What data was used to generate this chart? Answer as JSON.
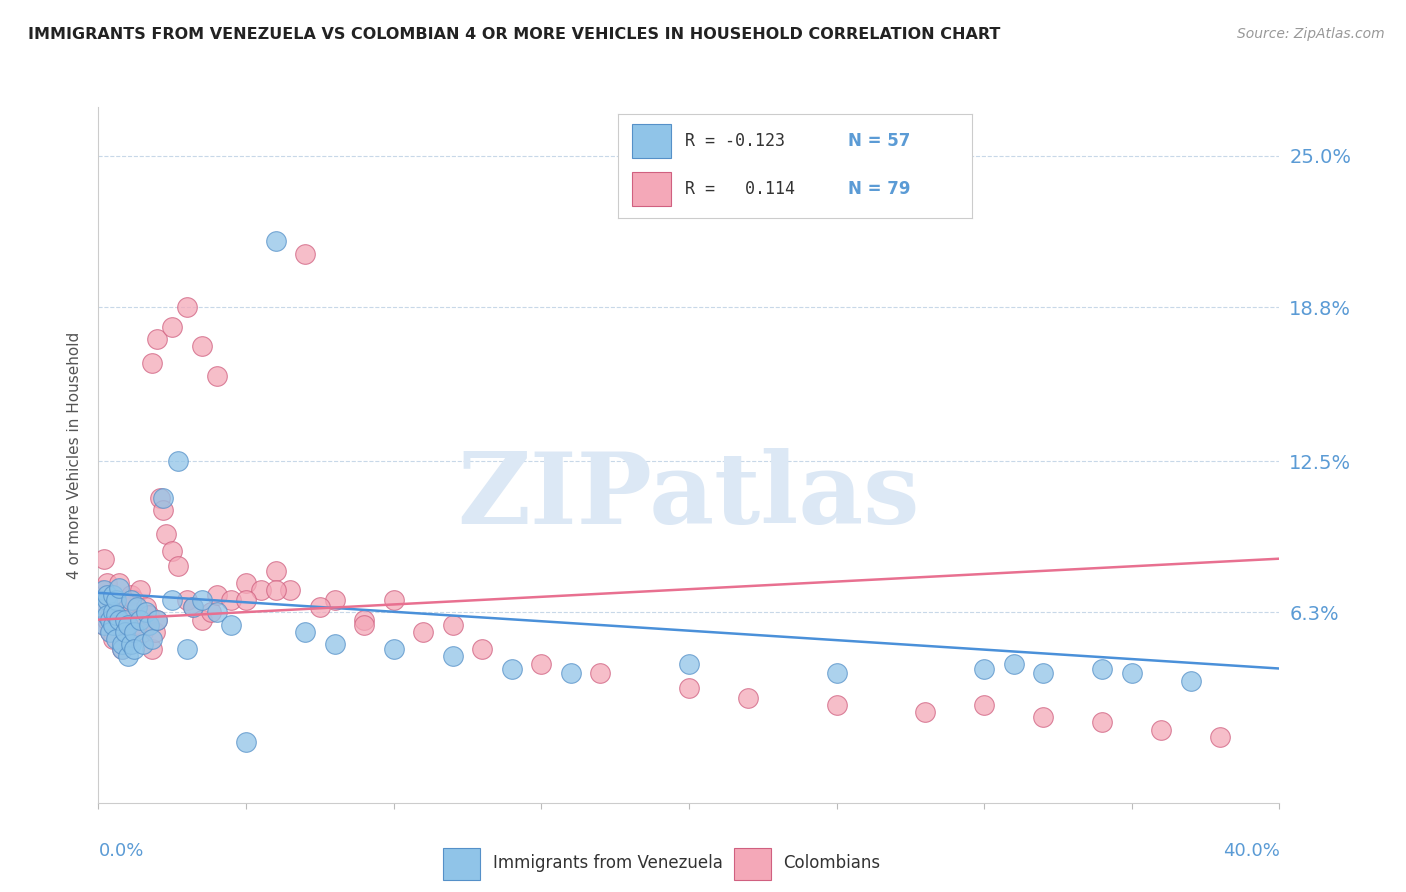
{
  "title": "IMMIGRANTS FROM VENEZUELA VS COLOMBIAN 4 OR MORE VEHICLES IN HOUSEHOLD CORRELATION CHART",
  "source": "Source: ZipAtlas.com",
  "ylabel": "4 or more Vehicles in Household",
  "xlim": [
    0.0,
    0.4
  ],
  "ylim": [
    -0.015,
    0.27
  ],
  "ytick_vals": [
    0.063,
    0.125,
    0.188,
    0.25
  ],
  "ytick_labels": [
    "6.3%",
    "12.5%",
    "18.8%",
    "25.0%"
  ],
  "color_venezuela": "#90c4e8",
  "color_colombia": "#f4a8b8",
  "trendline_color_venezuela": "#4a90d9",
  "trendline_color_colombia": "#e87090",
  "background_color": "#ffffff",
  "watermark_color": "#dce8f5",
  "venezuela_x": [
    0.001,
    0.002,
    0.002,
    0.003,
    0.003,
    0.003,
    0.004,
    0.004,
    0.005,
    0.005,
    0.005,
    0.006,
    0.006,
    0.006,
    0.007,
    0.007,
    0.008,
    0.008,
    0.009,
    0.009,
    0.01,
    0.01,
    0.011,
    0.011,
    0.012,
    0.012,
    0.013,
    0.014,
    0.015,
    0.016,
    0.017,
    0.018,
    0.02,
    0.022,
    0.025,
    0.027,
    0.03,
    0.032,
    0.035,
    0.04,
    0.045,
    0.05,
    0.06,
    0.07,
    0.08,
    0.1,
    0.12,
    0.14,
    0.16,
    0.2,
    0.25,
    0.3,
    0.31,
    0.32,
    0.34,
    0.35,
    0.37
  ],
  "venezuela_y": [
    0.065,
    0.072,
    0.058,
    0.068,
    0.062,
    0.07,
    0.06,
    0.055,
    0.063,
    0.058,
    0.07,
    0.068,
    0.052,
    0.062,
    0.073,
    0.06,
    0.048,
    0.05,
    0.06,
    0.055,
    0.045,
    0.058,
    0.05,
    0.068,
    0.055,
    0.048,
    0.065,
    0.06,
    0.05,
    0.063,
    0.058,
    0.052,
    0.06,
    0.11,
    0.068,
    0.125,
    0.048,
    0.065,
    0.068,
    0.063,
    0.058,
    0.01,
    0.215,
    0.055,
    0.05,
    0.048,
    0.045,
    0.04,
    0.038,
    0.042,
    0.038,
    0.04,
    0.042,
    0.038,
    0.04,
    0.038,
    0.035
  ],
  "colombia_x": [
    0.001,
    0.001,
    0.002,
    0.002,
    0.003,
    0.003,
    0.003,
    0.004,
    0.004,
    0.005,
    0.005,
    0.005,
    0.006,
    0.006,
    0.007,
    0.007,
    0.008,
    0.008,
    0.009,
    0.009,
    0.01,
    0.01,
    0.011,
    0.011,
    0.012,
    0.012,
    0.013,
    0.014,
    0.015,
    0.016,
    0.017,
    0.018,
    0.019,
    0.02,
    0.021,
    0.022,
    0.023,
    0.025,
    0.027,
    0.03,
    0.032,
    0.035,
    0.038,
    0.04,
    0.045,
    0.05,
    0.055,
    0.06,
    0.065,
    0.07,
    0.08,
    0.09,
    0.1,
    0.11,
    0.12,
    0.13,
    0.15,
    0.17,
    0.2,
    0.22,
    0.25,
    0.28,
    0.3,
    0.32,
    0.34,
    0.36,
    0.38,
    0.018,
    0.02,
    0.025,
    0.03,
    0.035,
    0.04,
    0.05,
    0.06,
    0.075,
    0.09
  ],
  "colombia_y": [
    0.072,
    0.068,
    0.058,
    0.085,
    0.07,
    0.06,
    0.075,
    0.062,
    0.055,
    0.065,
    0.052,
    0.07,
    0.063,
    0.068,
    0.058,
    0.075,
    0.062,
    0.048,
    0.055,
    0.06,
    0.065,
    0.052,
    0.07,
    0.063,
    0.068,
    0.058,
    0.06,
    0.072,
    0.055,
    0.065,
    0.062,
    0.048,
    0.055,
    0.06,
    0.11,
    0.105,
    0.095,
    0.088,
    0.082,
    0.068,
    0.065,
    0.06,
    0.063,
    0.07,
    0.068,
    0.075,
    0.072,
    0.08,
    0.072,
    0.21,
    0.068,
    0.06,
    0.068,
    0.055,
    0.058,
    0.048,
    0.042,
    0.038,
    0.032,
    0.028,
    0.025,
    0.022,
    0.025,
    0.02,
    0.018,
    0.015,
    0.012,
    0.165,
    0.175,
    0.18,
    0.188,
    0.172,
    0.16,
    0.068,
    0.072,
    0.065,
    0.058
  ],
  "ven_trend_x": [
    0.0,
    0.4
  ],
  "ven_trend_y": [
    0.071,
    0.04
  ],
  "col_trend_x": [
    0.0,
    0.4
  ],
  "col_trend_y": [
    0.06,
    0.085
  ]
}
